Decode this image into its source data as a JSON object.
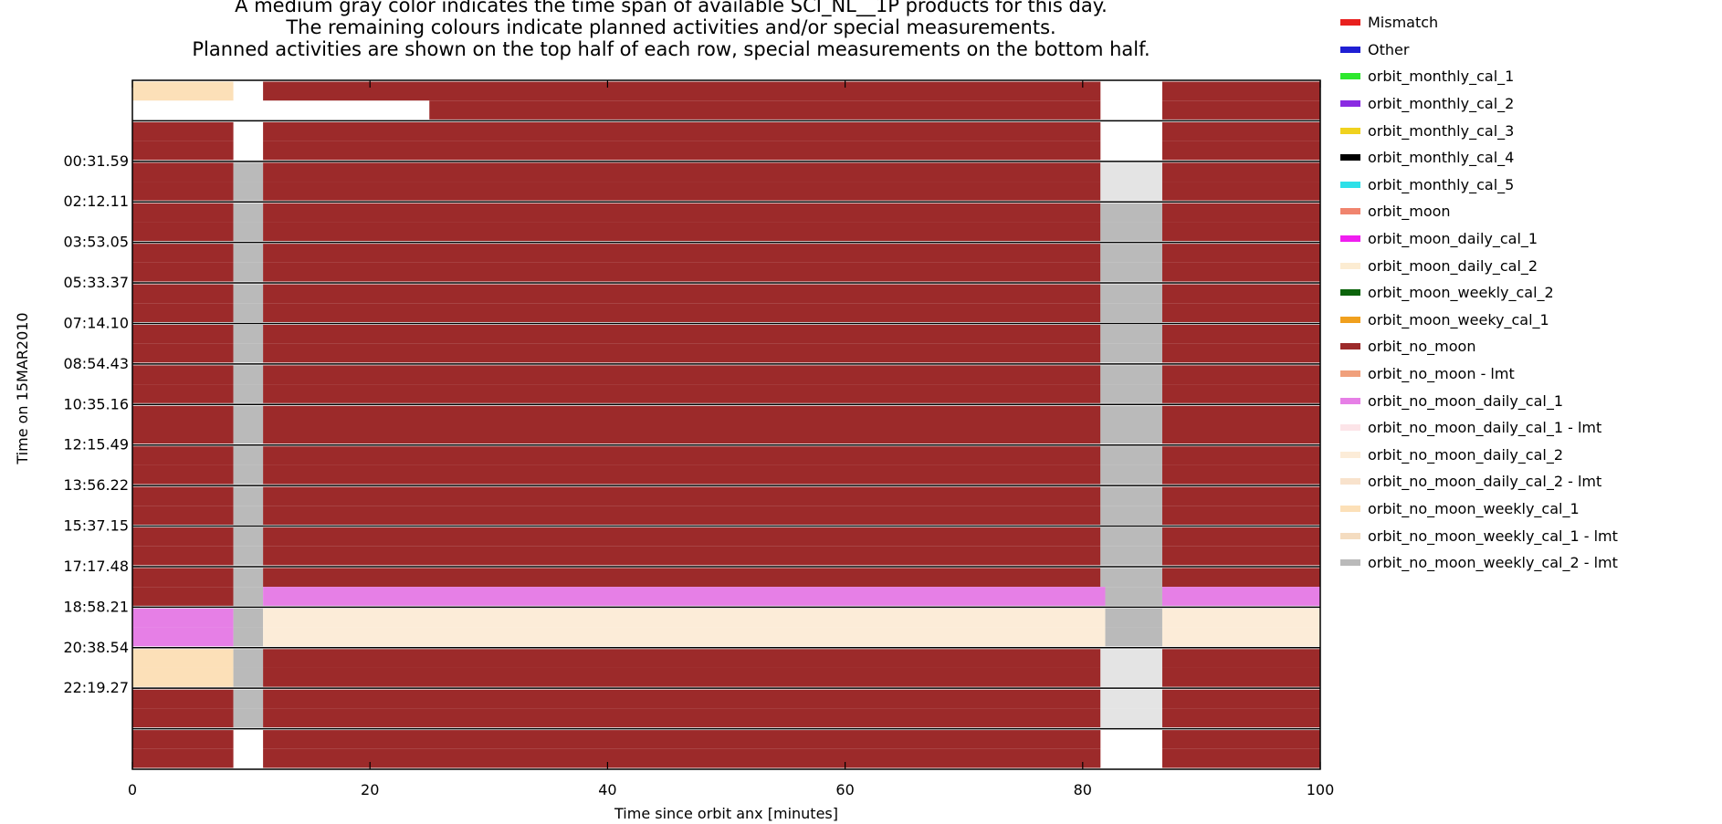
{
  "header": {
    "line1": "A medium gray color indicates the time span of available SCI_NL__1P products for this day.",
    "line2": "The remaining colours indicate planned activities and/or special measurements.",
    "line3": "Planned activities are shown on the top half of each row, special measurements on the bottom half."
  },
  "legend": {
    "items": [
      {
        "label": "Mismatch",
        "color": "#e8201e"
      },
      {
        "label": "Other",
        "color": "#1f1fd4"
      },
      {
        "label": "orbit_monthly_cal_1",
        "color": "#2ee82e"
      },
      {
        "label": "orbit_monthly_cal_2",
        "color": "#8a2be2"
      },
      {
        "label": "orbit_monthly_cal_3",
        "color": "#f0d21e"
      },
      {
        "label": "orbit_monthly_cal_4",
        "color": "#000000"
      },
      {
        "label": "orbit_monthly_cal_5",
        "color": "#2ee0e8"
      },
      {
        "label": "orbit_moon",
        "color": "#f0846e"
      },
      {
        "label": "orbit_moon_daily_cal_1",
        "color": "#f01ef0"
      },
      {
        "label": "orbit_moon_daily_cal_2",
        "color": "#fcecd2"
      },
      {
        "label": "orbit_moon_weekly_cal_2",
        "color": "#0c640c"
      },
      {
        "label": "orbit_moon_weeky_cal_1",
        "color": "#f0a01e"
      },
      {
        "label": "orbit_no_moon",
        "color": "#9c2a2a"
      },
      {
        "label": "orbit_no_moon - lmt",
        "color": "#f0a07c"
      },
      {
        "label": "orbit_no_moon_daily_cal_1",
        "color": "#e67fe6"
      },
      {
        "label": "orbit_no_moon_daily_cal_1 - lmt",
        "color": "#fce4e8"
      },
      {
        "label": "orbit_no_moon_daily_cal_2",
        "color": "#fcecd8"
      },
      {
        "label": "orbit_no_moon_daily_cal_2 - lmt",
        "color": "#f8e2cc"
      },
      {
        "label": "orbit_no_moon_weekly_cal_1",
        "color": "#fce0b8"
      },
      {
        "label": "orbit_no_moon_weekly_cal_1 - lmt",
        "color": "#f4dcc0"
      },
      {
        "label": "orbit_no_moon_weekly_cal_2 - lmt",
        "color": "#bababa"
      }
    ]
  },
  "chart_data": {
    "type": "heatmap",
    "xlabel": "Time since orbit anx [minutes]",
    "ylabel": "Time on 15MAR2010",
    "xlim": [
      0,
      100
    ],
    "xticks": [
      0,
      20,
      40,
      60,
      80,
      100
    ],
    "ytick_labels": [
      "00:31.59",
      "02:12.11",
      "03:53.05",
      "05:33.37",
      "07:14.10",
      "08:54.43",
      "10:35.16",
      "12:15.49",
      "13:56.22",
      "15:37.15",
      "17:17.48",
      "18:58.21",
      "20:38.54",
      "22:19.27"
    ],
    "row_count": 17,
    "colors": {
      "no_moon": "#9c2a2a",
      "gray": "#bababa",
      "light_gray": "#e4e4e4",
      "weekly_cal_1": "#fce0b8",
      "daily_cal_1": "#e67fe6",
      "daily_cal_2": "#fcecd8"
    },
    "rows": [
      {
        "top": [
          [
            0,
            8.5,
            "weekly_cal_1"
          ],
          [
            11,
            81.5,
            "no_moon"
          ],
          [
            86.7,
            100,
            "no_moon"
          ]
        ],
        "bottom": [
          [
            25,
            81.5,
            "no_moon"
          ],
          [
            86.7,
            100,
            "no_moon"
          ]
        ]
      },
      {
        "top": [
          [
            0,
            8.5,
            "no_moon"
          ],
          [
            11,
            81.5,
            "no_moon"
          ],
          [
            86.7,
            100,
            "no_moon"
          ]
        ],
        "bottom": [
          [
            0,
            8.5,
            "no_moon"
          ],
          [
            11,
            81.5,
            "no_moon"
          ],
          [
            86.7,
            100,
            "no_moon"
          ]
        ]
      },
      {
        "top": [
          [
            0,
            8.5,
            "no_moon"
          ],
          [
            8.5,
            11,
            "gray"
          ],
          [
            11,
            81.5,
            "no_moon"
          ],
          [
            81.5,
            86.7,
            "light_gray"
          ],
          [
            86.7,
            100,
            "no_moon"
          ]
        ],
        "bottom": [
          [
            0,
            8.5,
            "no_moon"
          ],
          [
            8.5,
            11,
            "gray"
          ],
          [
            11,
            81.5,
            "no_moon"
          ],
          [
            81.5,
            86.7,
            "light_gray"
          ],
          [
            86.7,
            100,
            "no_moon"
          ]
        ]
      },
      {
        "top": [
          [
            0,
            8.5,
            "no_moon"
          ],
          [
            8.5,
            11,
            "gray"
          ],
          [
            11,
            81.5,
            "no_moon"
          ],
          [
            81.5,
            86.7,
            "gray"
          ],
          [
            86.7,
            100,
            "no_moon"
          ]
        ],
        "bottom": [
          [
            0,
            8.5,
            "no_moon"
          ],
          [
            8.5,
            11,
            "gray"
          ],
          [
            11,
            81.5,
            "no_moon"
          ],
          [
            81.5,
            86.7,
            "gray"
          ],
          [
            86.7,
            100,
            "no_moon"
          ]
        ]
      },
      {
        "top": [
          [
            0,
            8.5,
            "no_moon"
          ],
          [
            8.5,
            11,
            "gray"
          ],
          [
            11,
            81.5,
            "no_moon"
          ],
          [
            81.5,
            86.7,
            "gray"
          ],
          [
            86.7,
            100,
            "no_moon"
          ]
        ],
        "bottom": [
          [
            0,
            8.5,
            "no_moon"
          ],
          [
            8.5,
            11,
            "gray"
          ],
          [
            11,
            81.5,
            "no_moon"
          ],
          [
            81.5,
            86.7,
            "gray"
          ],
          [
            86.7,
            100,
            "no_moon"
          ]
        ]
      },
      {
        "top": [
          [
            0,
            8.5,
            "no_moon"
          ],
          [
            8.5,
            11,
            "gray"
          ],
          [
            11,
            81.5,
            "no_moon"
          ],
          [
            81.5,
            86.7,
            "gray"
          ],
          [
            86.7,
            100,
            "no_moon"
          ]
        ],
        "bottom": [
          [
            0,
            8.5,
            "no_moon"
          ],
          [
            8.5,
            11,
            "gray"
          ],
          [
            11,
            81.5,
            "no_moon"
          ],
          [
            81.5,
            86.7,
            "gray"
          ],
          [
            86.7,
            100,
            "no_moon"
          ]
        ]
      },
      {
        "top": [
          [
            0,
            8.5,
            "no_moon"
          ],
          [
            8.5,
            11,
            "gray"
          ],
          [
            11,
            81.5,
            "no_moon"
          ],
          [
            81.5,
            86.7,
            "gray"
          ],
          [
            86.7,
            100,
            "no_moon"
          ]
        ],
        "bottom": [
          [
            0,
            8.5,
            "no_moon"
          ],
          [
            8.5,
            11,
            "gray"
          ],
          [
            11,
            81.5,
            "no_moon"
          ],
          [
            81.5,
            86.7,
            "gray"
          ],
          [
            86.7,
            100,
            "no_moon"
          ]
        ]
      },
      {
        "top": [
          [
            0,
            8.5,
            "no_moon"
          ],
          [
            8.5,
            11,
            "gray"
          ],
          [
            11,
            81.5,
            "no_moon"
          ],
          [
            81.5,
            86.7,
            "gray"
          ],
          [
            86.7,
            100,
            "no_moon"
          ]
        ],
        "bottom": [
          [
            0,
            8.5,
            "no_moon"
          ],
          [
            8.5,
            11,
            "gray"
          ],
          [
            11,
            81.5,
            "no_moon"
          ],
          [
            81.5,
            86.7,
            "gray"
          ],
          [
            86.7,
            100,
            "no_moon"
          ]
        ]
      },
      {
        "top": [
          [
            0,
            8.5,
            "no_moon"
          ],
          [
            8.5,
            11,
            "gray"
          ],
          [
            11,
            81.5,
            "no_moon"
          ],
          [
            81.5,
            86.7,
            "gray"
          ],
          [
            86.7,
            100,
            "no_moon"
          ]
        ],
        "bottom": [
          [
            0,
            8.5,
            "no_moon"
          ],
          [
            8.5,
            11,
            "gray"
          ],
          [
            11,
            81.5,
            "no_moon"
          ],
          [
            81.5,
            86.7,
            "gray"
          ],
          [
            86.7,
            100,
            "no_moon"
          ]
        ]
      },
      {
        "top": [
          [
            0,
            8.5,
            "no_moon"
          ],
          [
            8.5,
            11,
            "gray"
          ],
          [
            11,
            81.5,
            "no_moon"
          ],
          [
            81.5,
            86.7,
            "gray"
          ],
          [
            86.7,
            100,
            "no_moon"
          ]
        ],
        "bottom": [
          [
            0,
            8.5,
            "no_moon"
          ],
          [
            8.5,
            11,
            "gray"
          ],
          [
            11,
            81.5,
            "no_moon"
          ],
          [
            81.5,
            86.7,
            "gray"
          ],
          [
            86.7,
            100,
            "no_moon"
          ]
        ]
      },
      {
        "top": [
          [
            0,
            8.5,
            "no_moon"
          ],
          [
            8.5,
            11,
            "gray"
          ],
          [
            11,
            81.5,
            "no_moon"
          ],
          [
            81.5,
            86.7,
            "gray"
          ],
          [
            86.7,
            100,
            "no_moon"
          ]
        ],
        "bottom": [
          [
            0,
            8.5,
            "no_moon"
          ],
          [
            8.5,
            11,
            "gray"
          ],
          [
            11,
            81.5,
            "no_moon"
          ],
          [
            81.5,
            86.7,
            "gray"
          ],
          [
            86.7,
            100,
            "no_moon"
          ]
        ]
      },
      {
        "top": [
          [
            0,
            8.5,
            "no_moon"
          ],
          [
            8.5,
            11,
            "gray"
          ],
          [
            11,
            81.5,
            "no_moon"
          ],
          [
            81.5,
            86.7,
            "gray"
          ],
          [
            86.7,
            100,
            "no_moon"
          ]
        ],
        "bottom": [
          [
            0,
            8.5,
            "no_moon"
          ],
          [
            8.5,
            11,
            "gray"
          ],
          [
            11,
            81.5,
            "no_moon"
          ],
          [
            81.5,
            86.7,
            "gray"
          ],
          [
            86.7,
            100,
            "no_moon"
          ]
        ]
      },
      {
        "top": [
          [
            0,
            8.5,
            "no_moon"
          ],
          [
            8.5,
            11,
            "gray"
          ],
          [
            11,
            81.5,
            "no_moon"
          ],
          [
            81.5,
            86.7,
            "gray"
          ],
          [
            86.7,
            100,
            "no_moon"
          ]
        ],
        "bottom": [
          [
            0,
            8.5,
            "no_moon"
          ],
          [
            8.5,
            11,
            "gray"
          ],
          [
            11,
            81.9,
            "daily_cal_1"
          ],
          [
            81.9,
            86.7,
            "gray"
          ],
          [
            86.7,
            100,
            "daily_cal_1"
          ]
        ]
      },
      {
        "top": [
          [
            0,
            8.5,
            "daily_cal_1"
          ],
          [
            8.5,
            11,
            "gray"
          ],
          [
            11,
            81.9,
            "daily_cal_2"
          ],
          [
            81.9,
            86.7,
            "gray"
          ],
          [
            86.7,
            100,
            "daily_cal_2"
          ]
        ],
        "bottom": [
          [
            0,
            8.5,
            "daily_cal_1"
          ],
          [
            8.5,
            11,
            "gray"
          ],
          [
            11,
            81.9,
            "daily_cal_2"
          ],
          [
            81.9,
            86.7,
            "gray"
          ],
          [
            86.7,
            100,
            "daily_cal_2"
          ]
        ]
      },
      {
        "top": [
          [
            0,
            8.5,
            "weekly_cal_1"
          ],
          [
            8.5,
            11,
            "gray"
          ],
          [
            11,
            81.5,
            "no_moon"
          ],
          [
            81.5,
            86.7,
            "light_gray"
          ],
          [
            86.7,
            100,
            "no_moon"
          ]
        ],
        "bottom": [
          [
            0,
            8.5,
            "weekly_cal_1"
          ],
          [
            8.5,
            11,
            "gray"
          ],
          [
            11,
            81.5,
            "no_moon"
          ],
          [
            81.5,
            86.7,
            "light_gray"
          ],
          [
            86.7,
            100,
            "no_moon"
          ]
        ]
      },
      {
        "top": [
          [
            0,
            8.5,
            "no_moon"
          ],
          [
            8.5,
            11,
            "gray"
          ],
          [
            11,
            81.5,
            "no_moon"
          ],
          [
            81.5,
            86.7,
            "light_gray"
          ],
          [
            86.7,
            100,
            "no_moon"
          ]
        ],
        "bottom": [
          [
            0,
            8.5,
            "no_moon"
          ],
          [
            8.5,
            11,
            "gray"
          ],
          [
            11,
            81.5,
            "no_moon"
          ],
          [
            81.5,
            86.7,
            "light_gray"
          ],
          [
            86.7,
            100,
            "no_moon"
          ]
        ]
      },
      {
        "top": [
          [
            0,
            8.5,
            "no_moon"
          ],
          [
            11,
            81.5,
            "no_moon"
          ],
          [
            86.7,
            100,
            "no_moon"
          ]
        ],
        "bottom": [
          [
            0,
            8.5,
            "no_moon"
          ],
          [
            11,
            81.5,
            "no_moon"
          ],
          [
            86.7,
            100,
            "no_moon"
          ]
        ]
      }
    ]
  }
}
